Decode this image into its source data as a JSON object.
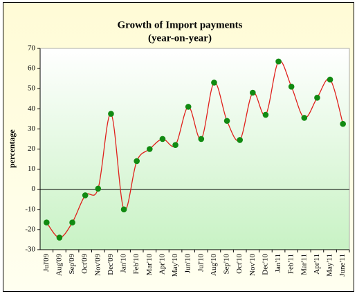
{
  "chart_data": {
    "type": "line",
    "title": "Growth of Import payments",
    "subtitle": "(year-on-year)",
    "y_label": "percentage",
    "categories": [
      "Jul'09",
      "Aug'09",
      "Sep'09",
      "Oct'09",
      "Nov'09",
      "Dec'09",
      "Jan'10",
      "Feb'10",
      "Mar'10",
      "Apr'10",
      "May'10",
      "Jun'10",
      "Jul'10",
      "Aug'10",
      "Sep'10",
      "Oct'10",
      "Nov'10",
      "Dec'10",
      "Jan'11",
      "Feb'11",
      "Mar'11",
      "Apr'11",
      "May'11",
      "June'11"
    ],
    "series": [
      {
        "name": "Import payments",
        "color": "#e0201b",
        "marker_color": "#118a11",
        "values": [
          -16.5,
          -24,
          -16.5,
          -3,
          0.3,
          37.5,
          -10,
          14,
          20,
          25,
          22,
          41,
          25,
          53,
          34,
          24.5,
          48,
          37,
          63.5,
          51,
          35.5,
          45.5,
          54.5,
          32.5
        ]
      }
    ],
    "ylim": [
      -30,
      70
    ],
    "yticks": [
      -30,
      -20,
      -10,
      0,
      10,
      20,
      30,
      40,
      50,
      60,
      70
    ],
    "smooth": true,
    "grid": false
  }
}
